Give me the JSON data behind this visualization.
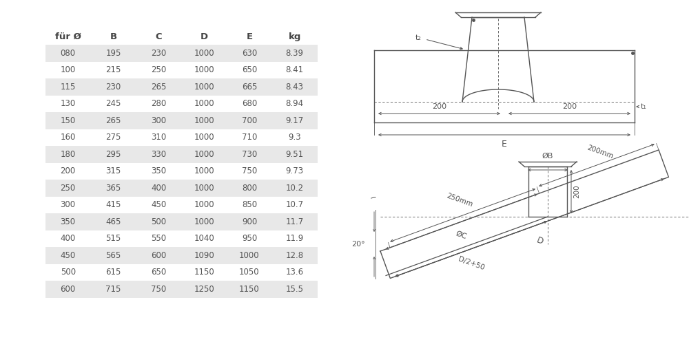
{
  "headers": [
    "für Ø",
    "B",
    "C",
    "D",
    "E",
    "kg"
  ],
  "rows": [
    [
      "080",
      "195",
      "230",
      "1000",
      "630",
      "8.39"
    ],
    [
      "100",
      "215",
      "250",
      "1000",
      "650",
      "8.41"
    ],
    [
      "115",
      "230",
      "265",
      "1000",
      "665",
      "8.43"
    ],
    [
      "130",
      "245",
      "280",
      "1000",
      "680",
      "8.94"
    ],
    [
      "150",
      "265",
      "300",
      "1000",
      "700",
      "9.17"
    ],
    [
      "160",
      "275",
      "310",
      "1000",
      "710",
      "9.3"
    ],
    [
      "180",
      "295",
      "330",
      "1000",
      "730",
      "9.51"
    ],
    [
      "200",
      "315",
      "350",
      "1000",
      "750",
      "9.73"
    ],
    [
      "250",
      "365",
      "400",
      "1000",
      "800",
      "10.2"
    ],
    [
      "300",
      "415",
      "450",
      "1000",
      "850",
      "10.7"
    ],
    [
      "350",
      "465",
      "500",
      "1000",
      "900",
      "11.7"
    ],
    [
      "400",
      "515",
      "550",
      "1040",
      "950",
      "11.9"
    ],
    [
      "450",
      "565",
      "600",
      "1090",
      "1000",
      "12.8"
    ],
    [
      "500",
      "615",
      "650",
      "1150",
      "1050",
      "13.6"
    ],
    [
      "600",
      "715",
      "750",
      "1250",
      "1150",
      "15.5"
    ]
  ],
  "shaded_rows": [
    0,
    2,
    4,
    6,
    8,
    10,
    12,
    14
  ],
  "row_bg_shaded": "#e8e8e8",
  "row_bg_normal": "#ffffff",
  "text_color": "#555555",
  "header_text_color": "#444444",
  "bg_color": "#ffffff",
  "line_color": "#555555"
}
